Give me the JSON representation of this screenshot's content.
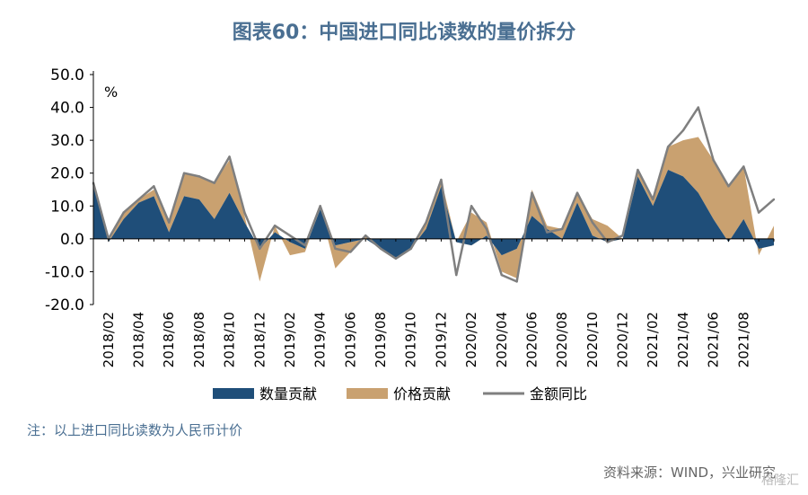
{
  "title": "图表60：中国进口同比读数的量价拆分",
  "note": "注：以上进口同比读数为人民币计价",
  "source": "资料来源：WIND，兴业研究",
  "watermark": "格隆汇",
  "colors": {
    "quantity": "#1f4e79",
    "price": "#c9a170",
    "total": "#7f7f7f"
  },
  "chart_data": {
    "type": "area",
    "unit": "%",
    "ylim": [
      -20,
      50
    ],
    "yticks": [
      "50.0",
      "40.0",
      "30.0",
      "20.0",
      "10.0",
      "0.0",
      "-10.0",
      "-20.0"
    ],
    "x": [
      "2018/01",
      "2018/02",
      "2018/03",
      "2018/04",
      "2018/05",
      "2018/06",
      "2018/07",
      "2018/08",
      "2018/09",
      "2018/10",
      "2018/11",
      "2018/12",
      "2019/01",
      "2019/02",
      "2019/03",
      "2019/04",
      "2019/05",
      "2019/06",
      "2019/07",
      "2019/08",
      "2019/09",
      "2019/10",
      "2019/11",
      "2019/12",
      "2020/01",
      "2020/02",
      "2020/03",
      "2020/04",
      "2020/05",
      "2020/06",
      "2020/07",
      "2020/08",
      "2020/09",
      "2020/10",
      "2020/11",
      "2020/12",
      "2021/01",
      "2021/02",
      "2021/03",
      "2021/04",
      "2021/05",
      "2021/06",
      "2021/07",
      "2021/08",
      "2021/09",
      "2021/10"
    ],
    "xtick_labels": [
      "2018/02",
      "2018/04",
      "2018/06",
      "2018/08",
      "2018/10",
      "2018/12",
      "2019/02",
      "2019/04",
      "2019/06",
      "2019/08",
      "2019/10",
      "2019/12",
      "2020/02",
      "2020/04",
      "2020/06",
      "2020/08",
      "2020/10",
      "2020/12",
      "2021/02",
      "2021/04",
      "2021/06",
      "2021/08"
    ],
    "series": [
      {
        "name": "数量贡献",
        "type": "area",
        "values": [
          17,
          -1,
          6,
          11,
          13,
          2,
          13,
          12,
          6,
          14,
          5,
          -3,
          2,
          -1,
          -3,
          9,
          -2,
          -1,
          0,
          -3,
          -6,
          -3,
          3,
          16,
          -1,
          -2,
          1,
          -5,
          -3,
          7,
          3,
          0,
          11,
          1,
          -1,
          0,
          19,
          10,
          21,
          19,
          14,
          6,
          -1,
          6,
          -3,
          -2
        ]
      },
      {
        "name": "价格贡献",
        "type": "area",
        "values": [
          0,
          1,
          2,
          1,
          2,
          4,
          7,
          7,
          11,
          10,
          2,
          -10,
          2,
          -4,
          -1,
          0,
          -7,
          -3,
          1,
          0,
          0,
          0,
          2,
          2,
          0,
          10,
          4,
          -5,
          -9,
          8,
          1,
          3,
          3,
          5,
          5,
          0,
          2,
          2,
          7,
          11,
          17,
          18,
          17,
          16,
          -2,
          6
        ]
      },
      {
        "name": "金额同比",
        "type": "line",
        "values": [
          17,
          0,
          8,
          12,
          16,
          5,
          20,
          19,
          17,
          25,
          8,
          -3,
          4,
          1,
          -2,
          10,
          -3,
          -4,
          1,
          -3,
          -6,
          -3,
          5,
          18,
          -11,
          10,
          3,
          -11,
          -13,
          14,
          2,
          3,
          14,
          5,
          -1,
          1,
          21,
          12,
          28,
          33,
          40,
          24,
          16,
          22,
          8,
          12
        ]
      }
    ],
    "legend": "bottom"
  }
}
